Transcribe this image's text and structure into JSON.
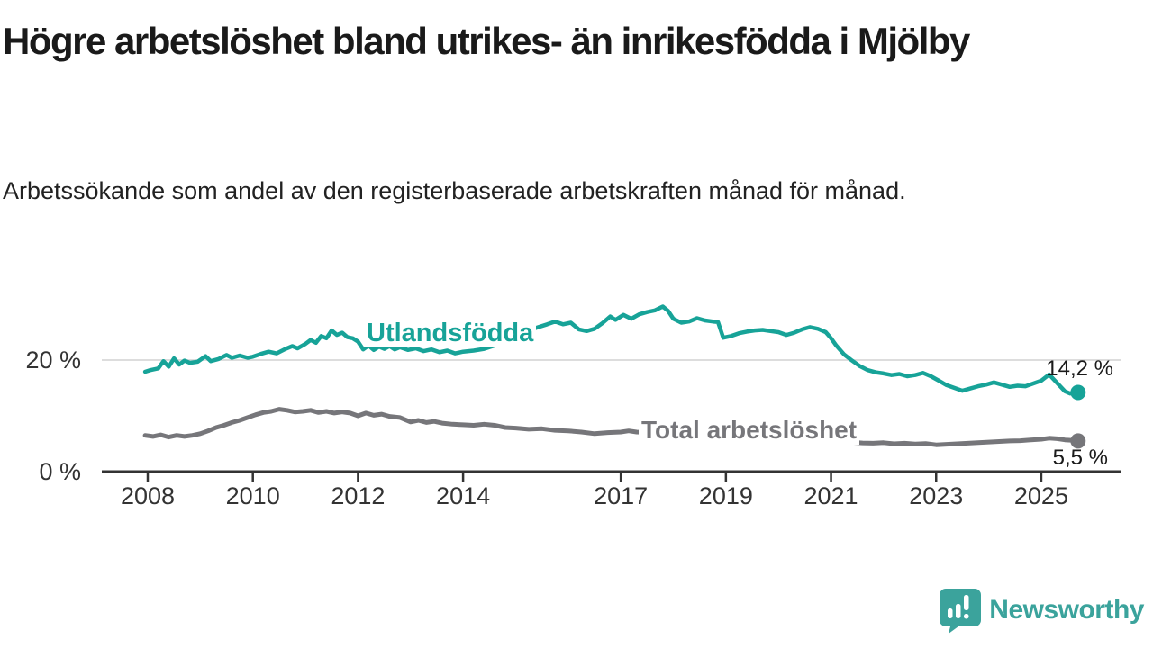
{
  "chart_data": {
    "type": "line",
    "title": "Högre arbetslöshet bland utrikes- än inrikesfödda i Mjölby",
    "subtitle": "Arbetssökande som andel av den registerbaserade arbetskraften månad för månad.",
    "x_ticks": [
      2008,
      2010,
      2012,
      2014,
      2017,
      2019,
      2021,
      2023,
      2025
    ],
    "y_ticks": [
      {
        "value": 0,
        "label": "0 %"
      },
      {
        "value": 20,
        "label": "20 %"
      }
    ],
    "x_domain": [
      2007.1,
      2026.5
    ],
    "y_domain_gridlines": [
      0,
      20
    ],
    "grid": "horizontal line at 20% only",
    "legend_position": "inline series labels on chart",
    "unit": "%",
    "series": [
      {
        "name": "Utlandsfödda",
        "color": "#17A398",
        "end_label": "14,2 %",
        "end_value": 14.2,
        "points": [
          [
            2007.95,
            17.9
          ],
          [
            2008.05,
            18.2
          ],
          [
            2008.2,
            18.5
          ],
          [
            2008.3,
            19.8
          ],
          [
            2008.4,
            18.8
          ],
          [
            2008.5,
            20.3
          ],
          [
            2008.6,
            19.2
          ],
          [
            2008.7,
            19.9
          ],
          [
            2008.8,
            19.5
          ],
          [
            2008.95,
            19.7
          ],
          [
            2009.1,
            20.7
          ],
          [
            2009.2,
            19.8
          ],
          [
            2009.35,
            20.2
          ],
          [
            2009.5,
            20.9
          ],
          [
            2009.6,
            20.4
          ],
          [
            2009.75,
            20.8
          ],
          [
            2009.9,
            20.4
          ],
          [
            2010.0,
            20.6
          ],
          [
            2010.15,
            21.1
          ],
          [
            2010.3,
            21.5
          ],
          [
            2010.45,
            21.2
          ],
          [
            2010.6,
            21.9
          ],
          [
            2010.75,
            22.5
          ],
          [
            2010.85,
            22.1
          ],
          [
            2011.0,
            22.9
          ],
          [
            2011.1,
            23.6
          ],
          [
            2011.2,
            23.1
          ],
          [
            2011.3,
            24.3
          ],
          [
            2011.4,
            23.9
          ],
          [
            2011.5,
            25.3
          ],
          [
            2011.6,
            24.5
          ],
          [
            2011.7,
            24.9
          ],
          [
            2011.8,
            24.1
          ],
          [
            2011.9,
            23.9
          ],
          [
            2012.0,
            23.3
          ],
          [
            2012.1,
            21.9
          ],
          [
            2012.2,
            22.6
          ],
          [
            2012.3,
            21.8
          ],
          [
            2012.4,
            22.4
          ],
          [
            2012.5,
            22.0
          ],
          [
            2012.6,
            22.5
          ],
          [
            2012.7,
            21.9
          ],
          [
            2012.8,
            22.3
          ],
          [
            2012.95,
            21.8
          ],
          [
            2013.1,
            22.1
          ],
          [
            2013.25,
            21.6
          ],
          [
            2013.4,
            21.9
          ],
          [
            2013.55,
            21.4
          ],
          [
            2013.7,
            21.7
          ],
          [
            2013.85,
            21.2
          ],
          [
            2014.0,
            21.5
          ],
          [
            2014.2,
            21.7
          ],
          [
            2014.4,
            22.0
          ],
          [
            2014.6,
            22.6
          ],
          [
            2014.8,
            23.4
          ],
          [
            2015.0,
            24.3
          ],
          [
            2015.2,
            25.1
          ],
          [
            2015.4,
            25.8
          ],
          [
            2015.6,
            26.4
          ],
          [
            2015.75,
            26.9
          ],
          [
            2015.9,
            26.4
          ],
          [
            2016.05,
            26.7
          ],
          [
            2016.2,
            25.5
          ],
          [
            2016.35,
            25.2
          ],
          [
            2016.5,
            25.6
          ],
          [
            2016.65,
            26.6
          ],
          [
            2016.8,
            27.8
          ],
          [
            2016.9,
            27.2
          ],
          [
            2017.05,
            28.1
          ],
          [
            2017.2,
            27.4
          ],
          [
            2017.35,
            28.2
          ],
          [
            2017.5,
            28.6
          ],
          [
            2017.65,
            28.9
          ],
          [
            2017.8,
            29.6
          ],
          [
            2017.9,
            28.8
          ],
          [
            2018.0,
            27.4
          ],
          [
            2018.15,
            26.7
          ],
          [
            2018.3,
            26.9
          ],
          [
            2018.45,
            27.5
          ],
          [
            2018.6,
            27.1
          ],
          [
            2018.75,
            26.9
          ],
          [
            2018.85,
            26.8
          ],
          [
            2018.95,
            24.0
          ],
          [
            2019.1,
            24.3
          ],
          [
            2019.25,
            24.8
          ],
          [
            2019.4,
            25.1
          ],
          [
            2019.55,
            25.3
          ],
          [
            2019.7,
            25.4
          ],
          [
            2019.85,
            25.2
          ],
          [
            2020.0,
            25.0
          ],
          [
            2020.15,
            24.5
          ],
          [
            2020.3,
            24.9
          ],
          [
            2020.45,
            25.5
          ],
          [
            2020.6,
            25.9
          ],
          [
            2020.75,
            25.6
          ],
          [
            2020.9,
            25.0
          ],
          [
            2021.0,
            23.9
          ],
          [
            2021.1,
            22.6
          ],
          [
            2021.25,
            21.0
          ],
          [
            2021.4,
            19.9
          ],
          [
            2021.55,
            18.9
          ],
          [
            2021.7,
            18.2
          ],
          [
            2021.85,
            17.8
          ],
          [
            2022.0,
            17.6
          ],
          [
            2022.15,
            17.3
          ],
          [
            2022.3,
            17.5
          ],
          [
            2022.45,
            17.1
          ],
          [
            2022.6,
            17.3
          ],
          [
            2022.75,
            17.7
          ],
          [
            2022.9,
            17.1
          ],
          [
            2023.05,
            16.3
          ],
          [
            2023.2,
            15.5
          ],
          [
            2023.35,
            15.0
          ],
          [
            2023.5,
            14.5
          ],
          [
            2023.65,
            14.9
          ],
          [
            2023.8,
            15.3
          ],
          [
            2023.95,
            15.6
          ],
          [
            2024.1,
            16.0
          ],
          [
            2024.25,
            15.6
          ],
          [
            2024.4,
            15.2
          ],
          [
            2024.55,
            15.4
          ],
          [
            2024.7,
            15.3
          ],
          [
            2024.85,
            15.8
          ],
          [
            2025.0,
            16.3
          ],
          [
            2025.15,
            17.4
          ],
          [
            2025.3,
            15.9
          ],
          [
            2025.45,
            14.4
          ],
          [
            2025.55,
            14.0
          ],
          [
            2025.7,
            14.2
          ]
        ]
      },
      {
        "name": "Total arbetslöshet",
        "color": "#76767A",
        "end_label": "5,5 %",
        "end_value": 5.5,
        "points": [
          [
            2007.95,
            6.5
          ],
          [
            2008.1,
            6.3
          ],
          [
            2008.25,
            6.6
          ],
          [
            2008.4,
            6.2
          ],
          [
            2008.55,
            6.5
          ],
          [
            2008.7,
            6.3
          ],
          [
            2008.85,
            6.5
          ],
          [
            2009.0,
            6.8
          ],
          [
            2009.15,
            7.3
          ],
          [
            2009.3,
            7.9
          ],
          [
            2009.45,
            8.3
          ],
          [
            2009.6,
            8.8
          ],
          [
            2009.75,
            9.2
          ],
          [
            2009.9,
            9.7
          ],
          [
            2010.05,
            10.2
          ],
          [
            2010.2,
            10.6
          ],
          [
            2010.35,
            10.8
          ],
          [
            2010.5,
            11.2
          ],
          [
            2010.65,
            11.0
          ],
          [
            2010.8,
            10.7
          ],
          [
            2010.95,
            10.8
          ],
          [
            2011.1,
            11.0
          ],
          [
            2011.25,
            10.6
          ],
          [
            2011.4,
            10.8
          ],
          [
            2011.55,
            10.5
          ],
          [
            2011.7,
            10.7
          ],
          [
            2011.85,
            10.5
          ],
          [
            2012.0,
            10.0
          ],
          [
            2012.15,
            10.5
          ],
          [
            2012.3,
            10.1
          ],
          [
            2012.45,
            10.3
          ],
          [
            2012.6,
            9.9
          ],
          [
            2012.8,
            9.7
          ],
          [
            2013.0,
            8.9
          ],
          [
            2013.15,
            9.2
          ],
          [
            2013.3,
            8.8
          ],
          [
            2013.45,
            9.0
          ],
          [
            2013.6,
            8.7
          ],
          [
            2013.8,
            8.5
          ],
          [
            2014.0,
            8.4
          ],
          [
            2014.2,
            8.3
          ],
          [
            2014.4,
            8.5
          ],
          [
            2014.6,
            8.3
          ],
          [
            2014.8,
            7.9
          ],
          [
            2015.0,
            7.8
          ],
          [
            2015.25,
            7.6
          ],
          [
            2015.5,
            7.7
          ],
          [
            2015.75,
            7.4
          ],
          [
            2016.0,
            7.3
          ],
          [
            2016.25,
            7.1
          ],
          [
            2016.5,
            6.8
          ],
          [
            2016.75,
            7.0
          ],
          [
            2017.0,
            7.1
          ],
          [
            2017.15,
            7.3
          ],
          [
            2017.3,
            7.1
          ],
          [
            2017.6,
            7.0
          ],
          [
            2018.0,
            6.7
          ],
          [
            2018.5,
            6.5
          ],
          [
            2019.0,
            6.3
          ],
          [
            2019.5,
            6.4
          ],
          [
            2020.0,
            6.6
          ],
          [
            2020.4,
            7.3
          ],
          [
            2020.8,
            6.8
          ],
          [
            2021.0,
            6.0
          ],
          [
            2021.2,
            5.3
          ],
          [
            2021.4,
            5.25
          ],
          [
            2021.6,
            5.15
          ],
          [
            2021.8,
            5.1
          ],
          [
            2022.0,
            5.2
          ],
          [
            2022.2,
            5.0
          ],
          [
            2022.4,
            5.1
          ],
          [
            2022.6,
            4.95
          ],
          [
            2022.8,
            5.05
          ],
          [
            2023.0,
            4.8
          ],
          [
            2023.2,
            4.9
          ],
          [
            2023.4,
            5.0
          ],
          [
            2023.6,
            5.1
          ],
          [
            2023.8,
            5.2
          ],
          [
            2024.0,
            5.3
          ],
          [
            2024.2,
            5.4
          ],
          [
            2024.4,
            5.5
          ],
          [
            2024.6,
            5.55
          ],
          [
            2024.8,
            5.7
          ],
          [
            2025.0,
            5.8
          ],
          [
            2025.15,
            6.0
          ],
          [
            2025.3,
            5.9
          ],
          [
            2025.45,
            5.7
          ],
          [
            2025.6,
            5.6
          ],
          [
            2025.7,
            5.5
          ]
        ]
      }
    ]
  },
  "colors": {
    "accent_teal": "#17A398",
    "series_gray": "#76767A",
    "grid": "#D2D2D2",
    "axis": "#333333",
    "tick_label": "#333333",
    "title_text": "#1A1A1A",
    "subtitle_text": "#222222",
    "value_label": "#1A1A1A",
    "logo": "#3BA39C"
  },
  "footer": {
    "brand": "Newsworthy"
  }
}
